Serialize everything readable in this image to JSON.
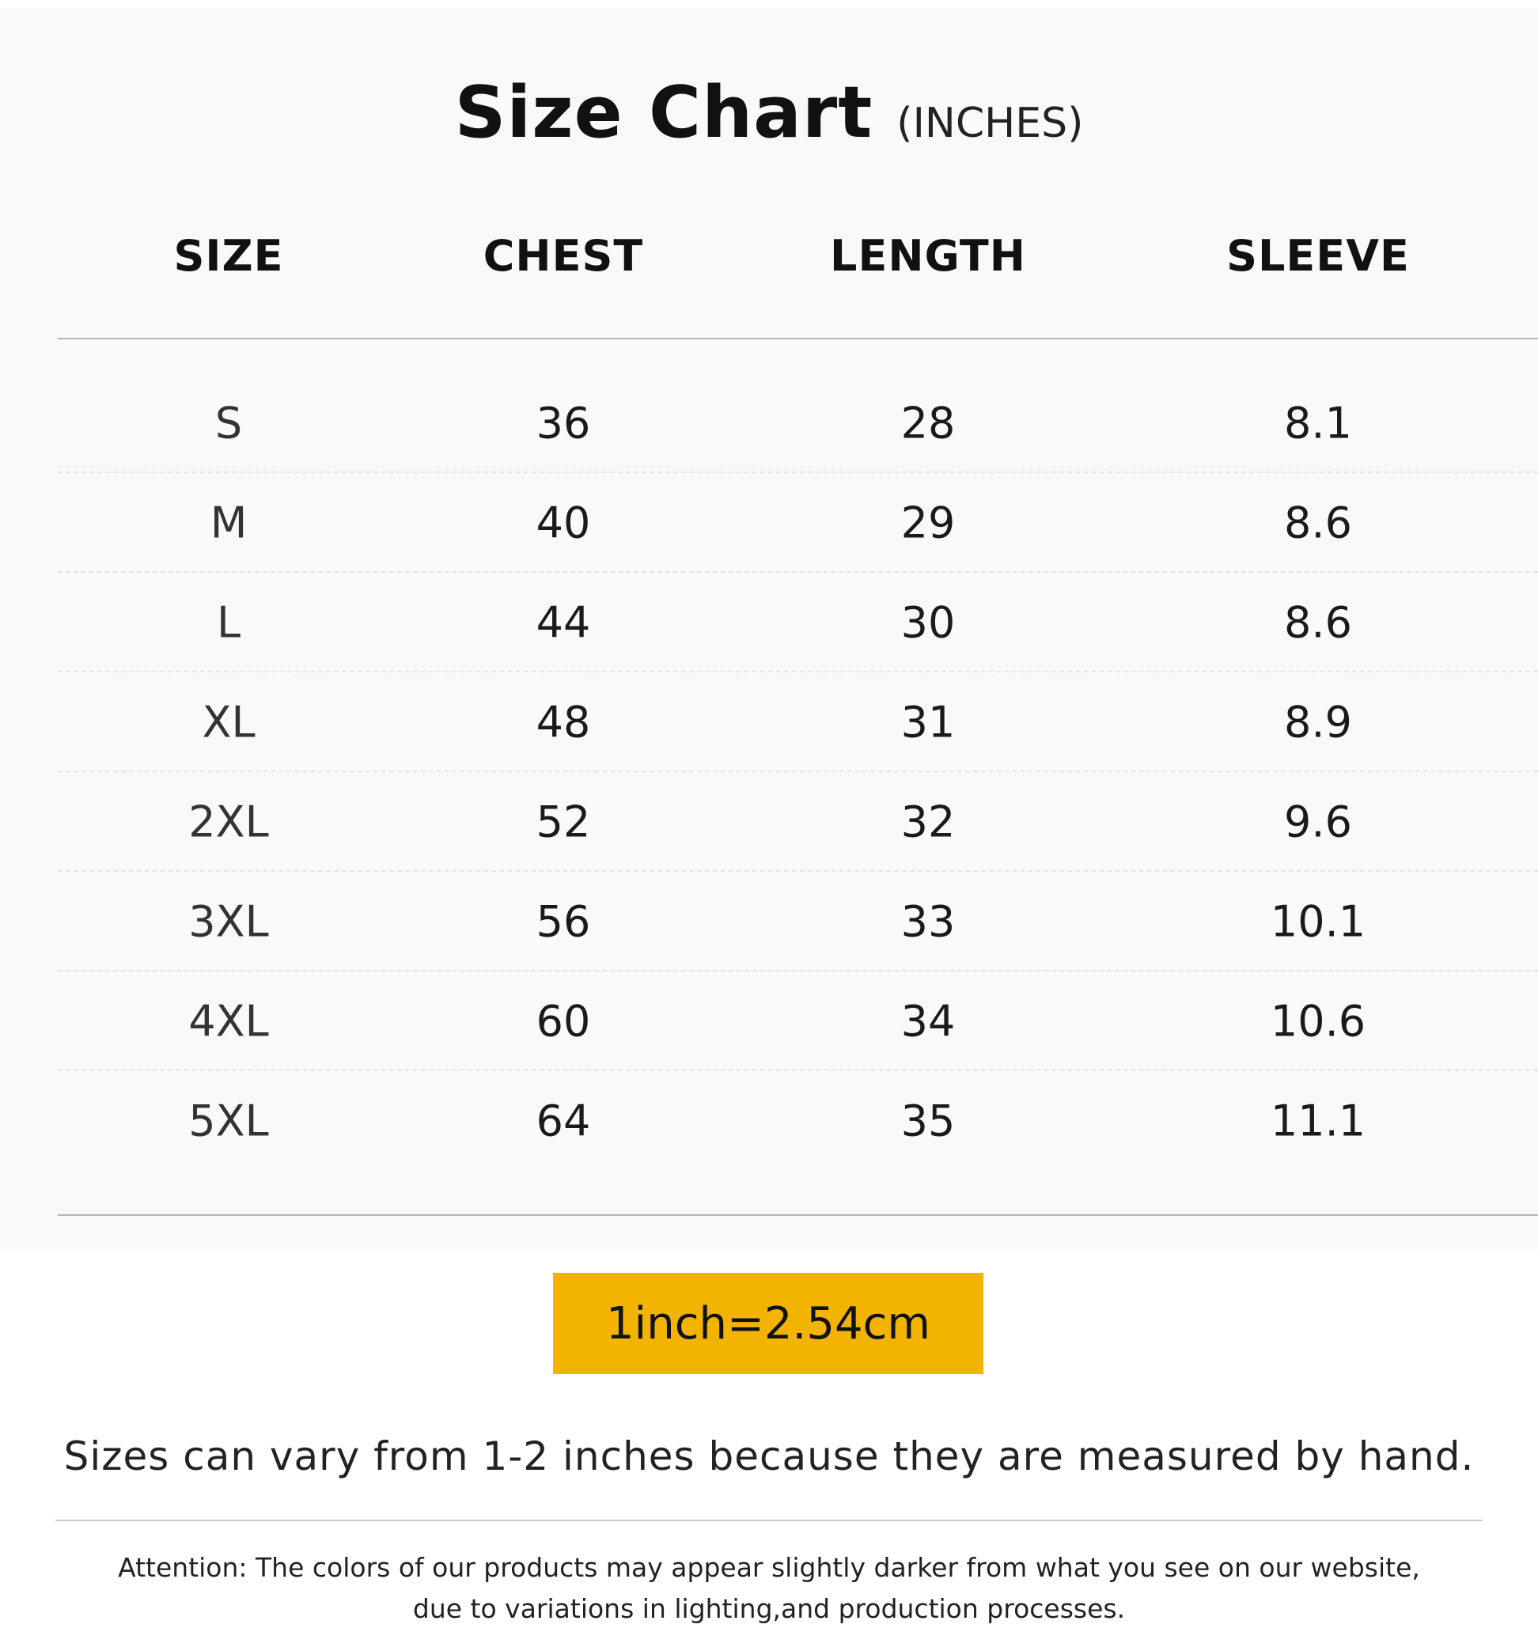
{
  "title": {
    "main": "Size Chart",
    "unit": "(INCHES)"
  },
  "columns": [
    "SIZE",
    "CHEST",
    "LENGTH",
    "SLEEVE"
  ],
  "rows": [
    [
      "S",
      "36",
      "28",
      "8.1"
    ],
    [
      "M",
      "40",
      "29",
      "8.6"
    ],
    [
      "L",
      "44",
      "30",
      "8.6"
    ],
    [
      "XL",
      "48",
      "31",
      "8.9"
    ],
    [
      "2XL",
      "52",
      "32",
      "9.6"
    ],
    [
      "3XL",
      "56",
      "33",
      "10.1"
    ],
    [
      "4XL",
      "60",
      "34",
      "10.6"
    ],
    [
      "5XL",
      "64",
      "35",
      "11.1"
    ]
  ],
  "conversion": "1inch=2.54cm",
  "note": "Sizes can vary from 1-2 inches because they are measured by hand.",
  "attention": [
    "Attention: The colors of our products may appear slightly darker from what you see on our website,",
    "due to variations in lighting,and production processes."
  ],
  "colors": {
    "accent": "#f2b400",
    "panel": "#f9f9f9"
  }
}
